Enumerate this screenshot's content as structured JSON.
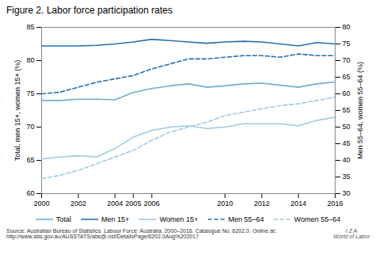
{
  "chart_data": {
    "type": "line",
    "title": "Figure 2. Labor force participation rates",
    "ylabel": "Total, men 15+, women 15+ (%)",
    "y2label": "Men 55–64, women 55–64 (%)",
    "x": [
      2000,
      2001,
      2002,
      2003,
      2004,
      2005,
      2006,
      2007,
      2008,
      2009,
      2010,
      2011,
      2012,
      2013,
      2014,
      2015,
      2016
    ],
    "xlim": [
      2000,
      2016
    ],
    "xticks": [
      2000,
      2002,
      2004,
      2005,
      2006,
      2010,
      2012,
      2014,
      2016
    ],
    "ylim": [
      60,
      85
    ],
    "yticks": [
      60,
      65,
      70,
      75,
      80,
      85
    ],
    "y2lim": [
      30,
      80
    ],
    "y2ticks": [
      30,
      35,
      40,
      45,
      50,
      55,
      60,
      65,
      70,
      75,
      80
    ],
    "grid": false,
    "legend": "bottom",
    "series": [
      {
        "name": "Total",
        "color": "#6baed6",
        "line_style": "solid",
        "values": [
          74.0,
          74.0,
          74.2,
          74.2,
          74.1,
          75.2,
          75.8,
          76.2,
          76.5,
          76.0,
          76.2,
          76.5,
          76.6,
          76.3,
          76.0,
          76.5,
          76.8
        ]
      },
      {
        "name": "Men 15+",
        "color": "#2171b5",
        "line_style": "solid",
        "values": [
          82.2,
          82.2,
          82.2,
          82.3,
          82.5,
          82.8,
          83.2,
          83.0,
          82.8,
          82.6,
          82.8,
          82.9,
          82.8,
          82.5,
          82.2,
          82.7,
          82.5
        ]
      },
      {
        "name": "Women 15+",
        "color": "#9ecae1",
        "line_style": "solid",
        "values": [
          65.2,
          65.5,
          65.7,
          65.5,
          66.8,
          68.5,
          69.5,
          70.0,
          70.2,
          69.8,
          70.0,
          70.5,
          70.5,
          70.5,
          70.2,
          71.0,
          71.5
        ]
      },
      {
        "name": "Men 55–64",
        "color": "#2171b5",
        "line_style": "dashed",
        "axis": "y2",
        "values": [
          60.0,
          60.5,
          62.0,
          63.5,
          64.5,
          65.5,
          67.5,
          69.0,
          70.5,
          70.5,
          71.0,
          71.5,
          71.5,
          71.0,
          72.0,
          71.5,
          71.5
        ]
      },
      {
        "name": "Women 55–64",
        "color": "#9ecae1",
        "line_style": "dashed",
        "axis": "y2",
        "values": [
          34.5,
          35.5,
          37.0,
          39.0,
          41.0,
          43.0,
          46.0,
          48.5,
          50.0,
          51.5,
          53.5,
          54.5,
          55.5,
          56.5,
          57.0,
          58.0,
          59.0
        ]
      }
    ],
    "annotations": [
      "Source: Australian Bureau of Statistics. Labour Force: Australia, 2000–2016. Catalogue No. 6202.0. Online at:\nhttp://www.abs.gov.au/AUSSTATS/abs@.nsf/DetailsPage/6202.0Aug%202017",
      "I Z A\nWorld of Labor"
    ]
  }
}
